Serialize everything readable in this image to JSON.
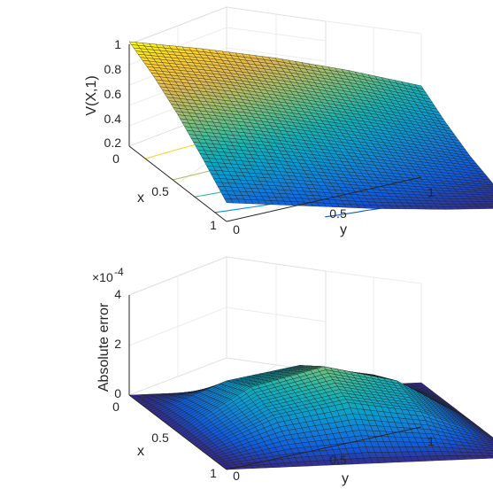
{
  "chart_data": [
    {
      "type": "surface",
      "title": "",
      "xlabel": "x",
      "ylabel": "y",
      "zlabel": "V(X,1)",
      "x_range": [
        0,
        1
      ],
      "y_range": [
        0,
        1
      ],
      "z_range": [
        0,
        1
      ],
      "xticks": [
        "0",
        "0.5",
        "1"
      ],
      "yticks": [
        "0",
        "0.5",
        "1"
      ],
      "zticks": [
        "0",
        "0.2",
        "0.4",
        "0.6",
        "0.8",
        "1"
      ],
      "x": [
        0,
        0.25,
        0.5,
        0.75,
        1
      ],
      "y": [
        0,
        0.25,
        0.5,
        0.75,
        1
      ],
      "z": [
        [
          1.0,
          0.9,
          0.78,
          0.63,
          0.45
        ],
        [
          0.85,
          0.74,
          0.6,
          0.45,
          0.28
        ],
        [
          0.66,
          0.55,
          0.42,
          0.28,
          0.14
        ],
        [
          0.43,
          0.34,
          0.23,
          0.13,
          0.04
        ],
        [
          0.18,
          0.12,
          0.06,
          0.02,
          0.0
        ]
      ],
      "contour_levels": [
        0.1,
        0.3,
        0.5,
        0.7,
        0.9
      ],
      "colormap": "parula",
      "grid": true
    },
    {
      "type": "surface",
      "title": "",
      "xlabel": "x",
      "ylabel": "y",
      "zlabel": "Absolute error",
      "axis_multiplier": "×10^-4",
      "x_range": [
        0,
        1
      ],
      "y_range": [
        0,
        1
      ],
      "z_range": [
        0,
        0.0004
      ],
      "xticks": [
        "0",
        "0.5",
        "1"
      ],
      "yticks": [
        "0",
        "0.5",
        "1"
      ],
      "zticks": [
        "0",
        "2",
        "4"
      ],
      "x": [
        0,
        0.25,
        0.5,
        0.75,
        1
      ],
      "y": [
        0,
        0.25,
        0.5,
        0.75,
        1
      ],
      "z": [
        [
          0,
          0,
          0,
          0,
          0
        ],
        [
          0,
          0.00012,
          0.00017,
          0.00012,
          0
        ],
        [
          0,
          0.00017,
          0.00024,
          0.00017,
          0
        ],
        [
          0,
          0.00012,
          0.00017,
          0.00012,
          0
        ],
        [
          0,
          0,
          0,
          0,
          0
        ]
      ],
      "colormap": "parula",
      "grid": true
    }
  ]
}
